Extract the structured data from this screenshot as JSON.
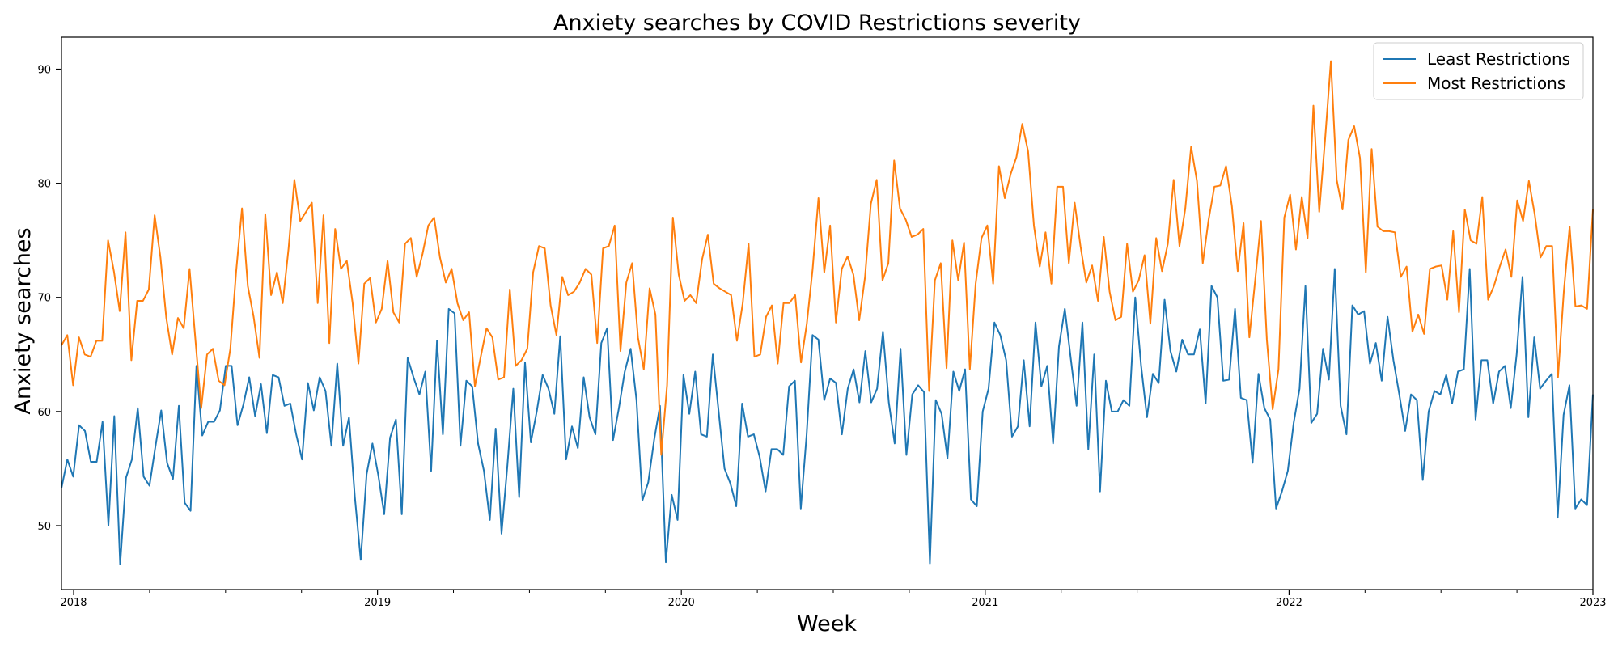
{
  "chart_data": {
    "type": "line",
    "title": "Anxiety searches by COVID Restrictions severity",
    "xlabel": "Week",
    "ylabel": "Anxiety searches",
    "xlim": [
      2017.96,
      2023.0
    ],
    "ylim": [
      44.4,
      92.8
    ],
    "x_ticks": [
      2018,
      2019,
      2020,
      2021,
      2022,
      2023
    ],
    "x_tick_labels": [
      "2018",
      "2019",
      "2020",
      "2021",
      "2022",
      "2023"
    ],
    "y_ticks": [
      50,
      60,
      70,
      80,
      90
    ],
    "y_tick_labels": [
      "50",
      "60",
      "70",
      "80",
      "90"
    ],
    "grid": false,
    "legend_position": "top-right",
    "x_start": 2017.96,
    "x_end": 2023.0,
    "series": [
      {
        "name": "Least Restrictions",
        "color": "#1f77b4",
        "values": [
          53.3,
          55.8,
          54.3,
          58.8,
          58.3,
          55.6,
          55.6,
          59.1,
          50.0,
          59.6,
          46.6,
          54.2,
          55.8,
          60.3,
          54.3,
          53.5,
          56.9,
          60.1,
          55.5,
          54.1,
          60.5,
          52.0,
          51.3,
          64.0,
          57.9,
          59.1,
          59.1,
          60.1,
          64.0,
          64.0,
          58.8,
          60.6,
          63.0,
          59.6,
          62.4,
          58.1,
          63.2,
          63.0,
          60.5,
          60.7,
          58.0,
          55.8,
          62.5,
          60.1,
          63.0,
          61.8,
          57.0,
          64.2,
          57.0,
          59.5,
          52.5,
          47.0,
          54.5,
          57.2,
          54.4,
          51.0,
          57.7,
          59.3,
          51.0,
          64.7,
          63.0,
          61.5,
          63.5,
          54.8,
          66.2,
          58.0,
          69.0,
          68.6,
          57.0,
          62.7,
          62.2,
          57.2,
          54.8,
          50.5,
          58.5,
          49.3,
          55.3,
          62.0,
          52.5,
          64.3,
          57.3,
          60.0,
          63.2,
          62.0,
          59.8,
          66.6,
          55.8,
          58.7,
          56.8,
          63.0,
          59.5,
          58.0,
          66.0,
          67.3,
          57.5,
          60.3,
          63.5,
          65.5,
          61.0,
          52.2,
          53.8,
          57.5,
          60.5,
          46.8,
          52.7,
          50.5,
          63.2,
          59.8,
          63.5,
          58.0,
          57.8,
          65.0,
          60.0,
          55.0,
          53.7,
          51.7,
          60.7,
          57.8,
          58.0,
          56.0,
          53.0,
          56.7,
          56.7,
          56.2,
          62.2,
          62.7,
          51.5,
          58.0,
          66.7,
          66.3,
          61.0,
          62.9,
          62.5,
          58.0,
          62.0,
          63.7,
          60.8,
          65.3,
          60.8,
          62.0,
          67.0,
          60.8,
          57.2,
          65.5,
          56.2,
          61.5,
          62.3,
          61.7,
          46.7,
          61.0,
          59.8,
          55.9,
          63.5,
          61.8,
          63.7,
          52.3,
          51.7,
          60.0,
          62.0,
          67.8,
          66.7,
          64.5,
          57.8,
          58.7,
          64.5,
          58.7,
          67.8,
          62.2,
          64.0,
          57.2,
          65.7,
          69.0,
          64.7,
          60.5,
          67.8,
          56.7,
          65.0,
          53.0,
          62.7,
          60.0,
          60.0,
          61.0,
          60.5,
          70.0,
          64.0,
          59.5,
          63.3,
          62.5,
          69.8,
          65.3,
          63.5,
          66.3,
          65.0,
          65.0,
          67.2,
          60.7,
          71.0,
          70.0,
          62.7,
          62.8,
          69.0,
          61.2,
          61.0,
          55.5,
          63.3,
          60.3,
          59.3,
          51.5,
          53.0,
          54.8,
          59.0,
          62.0,
          71.0,
          59.0,
          59.8,
          65.5,
          62.8,
          72.5,
          60.5,
          58.0,
          69.3,
          68.5,
          68.8,
          64.2,
          66.0,
          62.7,
          68.3,
          64.5,
          61.5,
          58.3,
          61.5,
          61.0,
          54.0,
          60.0,
          61.8,
          61.5,
          63.2,
          60.7,
          63.5,
          63.7,
          72.5,
          59.3,
          64.5,
          64.5,
          60.7,
          63.5,
          64.0,
          60.3,
          65.0,
          71.8,
          59.5,
          66.5,
          62.0,
          62.7,
          63.3,
          50.7,
          59.7,
          62.3,
          51.5,
          52.3,
          51.8,
          61.5
        ]
      },
      {
        "name": "Most Restrictions",
        "color": "#ff7f0e",
        "values": [
          65.8,
          66.7,
          62.3,
          66.5,
          65.0,
          64.8,
          66.2,
          66.2,
          75.0,
          72.3,
          68.8,
          75.7,
          64.5,
          69.7,
          69.7,
          70.7,
          77.2,
          73.5,
          68.2,
          65.0,
          68.2,
          67.3,
          72.5,
          66.3,
          60.3,
          65.0,
          65.5,
          62.7,
          62.3,
          65.5,
          72.3,
          77.8,
          71.0,
          68.3,
          64.7,
          77.3,
          70.2,
          72.2,
          69.5,
          74.3,
          80.3,
          76.7,
          77.5,
          78.3,
          69.5,
          77.2,
          66.0,
          76.0,
          72.5,
          73.2,
          69.5,
          64.2,
          71.2,
          71.7,
          67.8,
          69.0,
          73.2,
          68.7,
          67.8,
          74.7,
          75.2,
          71.8,
          73.8,
          76.3,
          77.0,
          73.5,
          71.3,
          72.5,
          69.5,
          68.0,
          68.7,
          62.2,
          64.8,
          67.3,
          66.5,
          62.8,
          63.0,
          70.7,
          64.0,
          64.5,
          65.5,
          72.2,
          74.5,
          74.3,
          69.3,
          66.7,
          71.8,
          70.2,
          70.5,
          71.3,
          72.5,
          72.0,
          66.0,
          74.3,
          74.5,
          76.3,
          65.3,
          71.3,
          73.0,
          66.5,
          63.7,
          70.8,
          68.5,
          56.2,
          62.3,
          77.0,
          72.0,
          69.7,
          70.2,
          69.5,
          73.3,
          75.5,
          71.2,
          70.8,
          70.5,
          70.2,
          66.2,
          69.5,
          74.7,
          64.8,
          65.0,
          68.3,
          69.3,
          64.2,
          69.5,
          69.5,
          70.2,
          64.3,
          67.7,
          72.5,
          78.7,
          72.2,
          76.3,
          67.8,
          72.5,
          73.6,
          72.0,
          68.0,
          71.8,
          78.2,
          80.3,
          71.5,
          73.0,
          82.0,
          77.8,
          76.8,
          75.3,
          75.5,
          76.0,
          61.8,
          71.5,
          73.0,
          63.8,
          75.0,
          71.5,
          74.8,
          63.7,
          71.2,
          75.2,
          76.3,
          71.2,
          81.5,
          78.7,
          80.8,
          82.3,
          85.2,
          82.8,
          76.3,
          72.7,
          75.7,
          71.2,
          79.7,
          79.7,
          73.0,
          78.3,
          74.5,
          71.3,
          72.8,
          69.7,
          75.3,
          70.5,
          68.0,
          68.3,
          74.7,
          70.5,
          71.5,
          73.7,
          67.7,
          75.2,
          72.3,
          74.7,
          80.3,
          74.5,
          77.8,
          83.2,
          80.2,
          73.0,
          76.8,
          79.7,
          79.8,
          81.5,
          78.0,
          72.3,
          76.5,
          66.5,
          71.5,
          76.7,
          66.3,
          60.2,
          63.7,
          77.0,
          79.0,
          74.2,
          78.8,
          75.2,
          86.8,
          77.5,
          83.8,
          90.7,
          80.3,
          77.7,
          83.8,
          85.0,
          82.2,
          72.2,
          83.0,
          76.2,
          75.8,
          75.8,
          75.7,
          71.8,
          72.7,
          67.0,
          68.5,
          66.8,
          72.5,
          72.7,
          72.8,
          69.8,
          75.8,
          68.7,
          77.7,
          75.0,
          74.7,
          78.8,
          69.8,
          71.0,
          72.7,
          74.2,
          71.8,
          78.5,
          76.7,
          80.2,
          77.3,
          73.5,
          74.5,
          74.5,
          63.0,
          70.5,
          76.2,
          69.2,
          69.3,
          69.0,
          77.7
        ]
      }
    ]
  }
}
